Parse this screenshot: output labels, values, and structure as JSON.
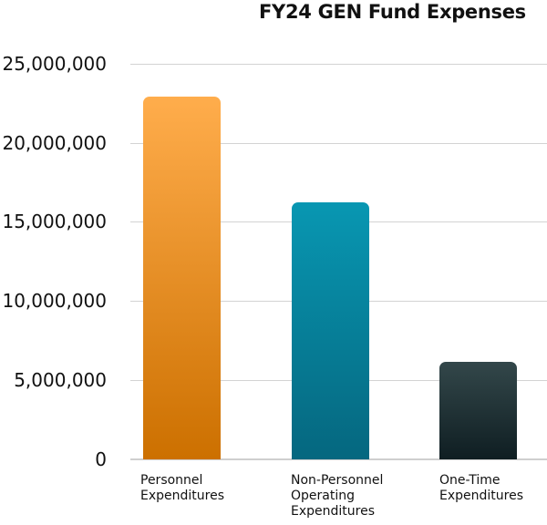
{
  "chart_data": {
    "type": "bar",
    "title": "FY24 GEN Fund Expenses",
    "xlabel": "",
    "ylabel": "",
    "categories": [
      "Personnel Expenditures",
      "Non-Personnel Operating Expenditures",
      "One-Time Expenditures"
    ],
    "category_label_lines": [
      [
        "Personnel",
        "Expenditures"
      ],
      [
        "Non-Personnel",
        "Operating",
        "Expenditures"
      ],
      [
        "One-Time",
        "Expenditures"
      ]
    ],
    "values": [
      22900000,
      16250000,
      6150000
    ],
    "ylim": [
      0,
      25000000
    ],
    "yticks": [
      0,
      5000000,
      10000000,
      15000000,
      20000000,
      25000000
    ],
    "ytick_labels": [
      "0",
      "5,000,000",
      "10,000,000",
      "15,000,000",
      "20,000,000",
      "25,000,000"
    ],
    "grid": true,
    "legend": null,
    "colors": [
      {
        "top": "#FFAD4C",
        "bottom": "#CC7000"
      },
      {
        "top": "#0897B2",
        "bottom": "#05677F"
      },
      {
        "top": "#33474A",
        "bottom": "#0F1E22"
      }
    ]
  }
}
